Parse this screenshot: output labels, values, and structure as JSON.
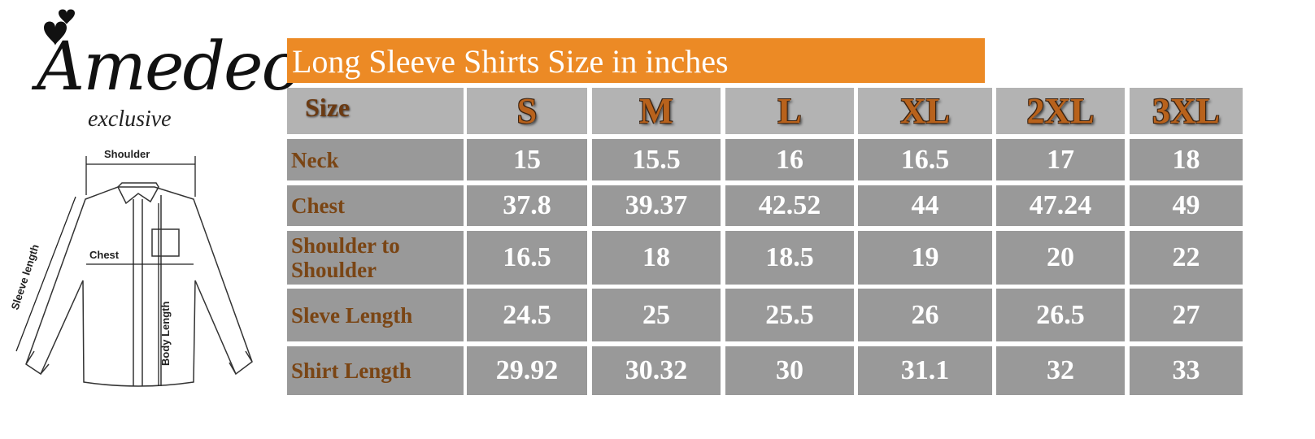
{
  "logo": {
    "brand": "Amedeo",
    "tagline": "exclusive"
  },
  "diagram": {
    "shoulder": "Shoulder",
    "chest": "Chest",
    "sleeve_length": "Sleeve length",
    "body_length": "Body Length"
  },
  "title": "Long Sleeve Shirts Size in inches",
  "colors": {
    "title_bar": "#ec8a25",
    "header_row": "#b3b3b3",
    "data_row": "#999999",
    "label_text": "#7a4514",
    "size_text": "#b8621c"
  },
  "table": {
    "header_label": "Size",
    "sizes": [
      "S",
      "M",
      "L",
      "XL",
      "2XL",
      "3XL"
    ],
    "rows": [
      {
        "label": "Neck",
        "values": [
          "15",
          "15.5",
          "16",
          "16.5",
          "17",
          "18"
        ]
      },
      {
        "label": "Chest",
        "values": [
          "37.8",
          "39.37",
          "42.52",
          "44",
          "47.24",
          "49"
        ]
      },
      {
        "label": "Shoulder to Shoulder",
        "values": [
          "16.5",
          "18",
          "18.5",
          "19",
          "20",
          "22"
        ]
      },
      {
        "label": "Sleve Length",
        "values": [
          "24.5",
          "25",
          "25.5",
          "26",
          "26.5",
          "27"
        ]
      },
      {
        "label": "Shirt Length",
        "values": [
          "29.92",
          "30.32",
          "30",
          "31.1",
          "32",
          "33"
        ]
      }
    ]
  }
}
